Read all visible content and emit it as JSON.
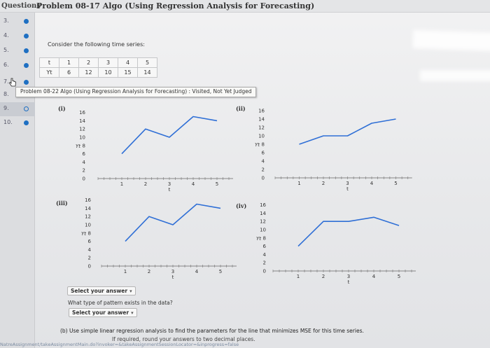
{
  "header": {
    "questions_label": "Questions",
    "problem_title": "Problem 08-17 Algo (Using Regression Analysis for Forecasting)"
  },
  "sidebar": {
    "items": [
      {
        "num": "3.",
        "status": "answered"
      },
      {
        "num": "4.",
        "status": "answered"
      },
      {
        "num": "5.",
        "status": "answered"
      },
      {
        "num": "6.",
        "status": "answered"
      },
      {
        "num": "7.",
        "status": "answered"
      },
      {
        "num": "8.",
        "status": "answered"
      },
      {
        "num": "9.",
        "status": "current"
      },
      {
        "num": "10.",
        "status": "answered"
      }
    ]
  },
  "question": {
    "intro": "Consider the following time series:",
    "series_table": {
      "t_label": "t",
      "y_label": "Yt",
      "t_values": [
        "1",
        "2",
        "3",
        "4",
        "5"
      ],
      "y_values": [
        "6",
        "12",
        "10",
        "15",
        "14"
      ]
    },
    "tooltip": "Problem 08-22 Algo (Using Regression Analysis for Forecasting) : Visited, Not Yet Judged",
    "pattern_question": "What type of pattern exists in the data?",
    "dropdown_placeholder": "Select your answer",
    "part_b": "(b) Use simple linear regression analysis to find the parameters for the line that minimizes MSE for this time series.",
    "rounding_note": "If required, round your answers to two decimal places.",
    "footer_url": "NatreAssignment/takeAssignmentMain.do?invoker=&takeAssignmentSessionLocator=&inprogress=false"
  },
  "chart_data": [
    {
      "type": "line",
      "panel_label": "(i)",
      "ylabel": "Yt",
      "xlabel": "t",
      "y_ticks": [
        "16",
        "14",
        "12",
        "10",
        "8",
        "6",
        "4",
        "2",
        "0"
      ],
      "x_ticks": [
        "1",
        "2",
        "3",
        "4",
        "5"
      ],
      "ylim": [
        0,
        16
      ],
      "xlim": [
        0,
        5.5
      ],
      "series": [
        {
          "x": [
            1,
            2,
            3,
            4,
            5
          ],
          "values": [
            6,
            12,
            10,
            15,
            14
          ]
        }
      ]
    },
    {
      "type": "line",
      "panel_label": "(ii)",
      "ylabel": "Yt",
      "xlabel": "t",
      "y_ticks": [
        "16",
        "14",
        "12",
        "10",
        "8",
        "6",
        "4",
        "2",
        "0"
      ],
      "x_ticks": [
        "1",
        "2",
        "3",
        "4",
        "5"
      ],
      "ylim": [
        0,
        16
      ],
      "xlim": [
        0,
        5.5
      ],
      "series": [
        {
          "x": [
            1,
            2,
            3,
            4,
            5
          ],
          "values": [
            8,
            10,
            10,
            13,
            14
          ]
        }
      ]
    },
    {
      "type": "line",
      "panel_label": "(iii)",
      "ylabel": "Yt",
      "xlabel": "t",
      "y_ticks": [
        "16",
        "14",
        "12",
        "10",
        "8",
        "6",
        "4",
        "2",
        "0"
      ],
      "x_ticks": [
        "1",
        "2",
        "3",
        "4",
        "5"
      ],
      "ylim": [
        0,
        16
      ],
      "xlim": [
        0,
        5.5
      ],
      "series": [
        {
          "x": [
            1,
            2,
            3,
            4,
            5
          ],
          "values": [
            6,
            12,
            10,
            15,
            14
          ]
        }
      ]
    },
    {
      "type": "line",
      "panel_label": "(iv)",
      "ylabel": "Yt",
      "xlabel": "t",
      "y_ticks": [
        "16",
        "14",
        "12",
        "10",
        "8",
        "6",
        "4",
        "2",
        "0"
      ],
      "x_ticks": [
        "1",
        "2",
        "3",
        "4",
        "5"
      ],
      "ylim": [
        0,
        16
      ],
      "xlim": [
        0,
        5.5
      ],
      "series": [
        {
          "x": [
            1,
            2,
            3,
            4,
            5
          ],
          "values": [
            6,
            12,
            12,
            13,
            11
          ]
        }
      ]
    }
  ],
  "colors": {
    "line": "#2f6fd6",
    "accent": "#1e6fc2"
  }
}
